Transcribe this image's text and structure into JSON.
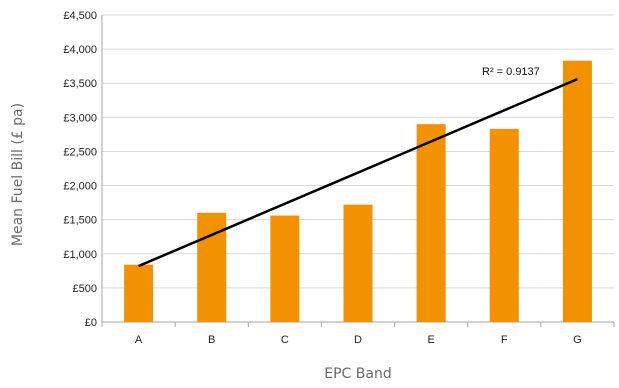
{
  "chart_data": {
    "type": "bar",
    "categories": [
      "A",
      "B",
      "C",
      "D",
      "E",
      "F",
      "G"
    ],
    "values": [
      840,
      1600,
      1560,
      1720,
      2900,
      2830,
      3830
    ],
    "xlabel": "EPC Band",
    "ylabel": "Mean Fuel Bill (£ pa)",
    "ylim": [
      0,
      4500
    ],
    "yticks": [
      0,
      500,
      1000,
      1500,
      2000,
      2500,
      3000,
      3500,
      4000,
      4500
    ],
    "ytick_labels": [
      "£0",
      "£500",
      "£1,000",
      "£1,500",
      "£2,000",
      "£2,500",
      "£3,000",
      "£3,500",
      "£4,000",
      "£4,500"
    ],
    "trendline": {
      "type": "linear",
      "start": 820,
      "end": 3560,
      "label": "R² = 0.9137"
    },
    "grid": "horizontal",
    "legend": "none",
    "colors": {
      "bar": "#F39200",
      "trendline": "#000000",
      "grid": "#d9d9d9"
    }
  }
}
